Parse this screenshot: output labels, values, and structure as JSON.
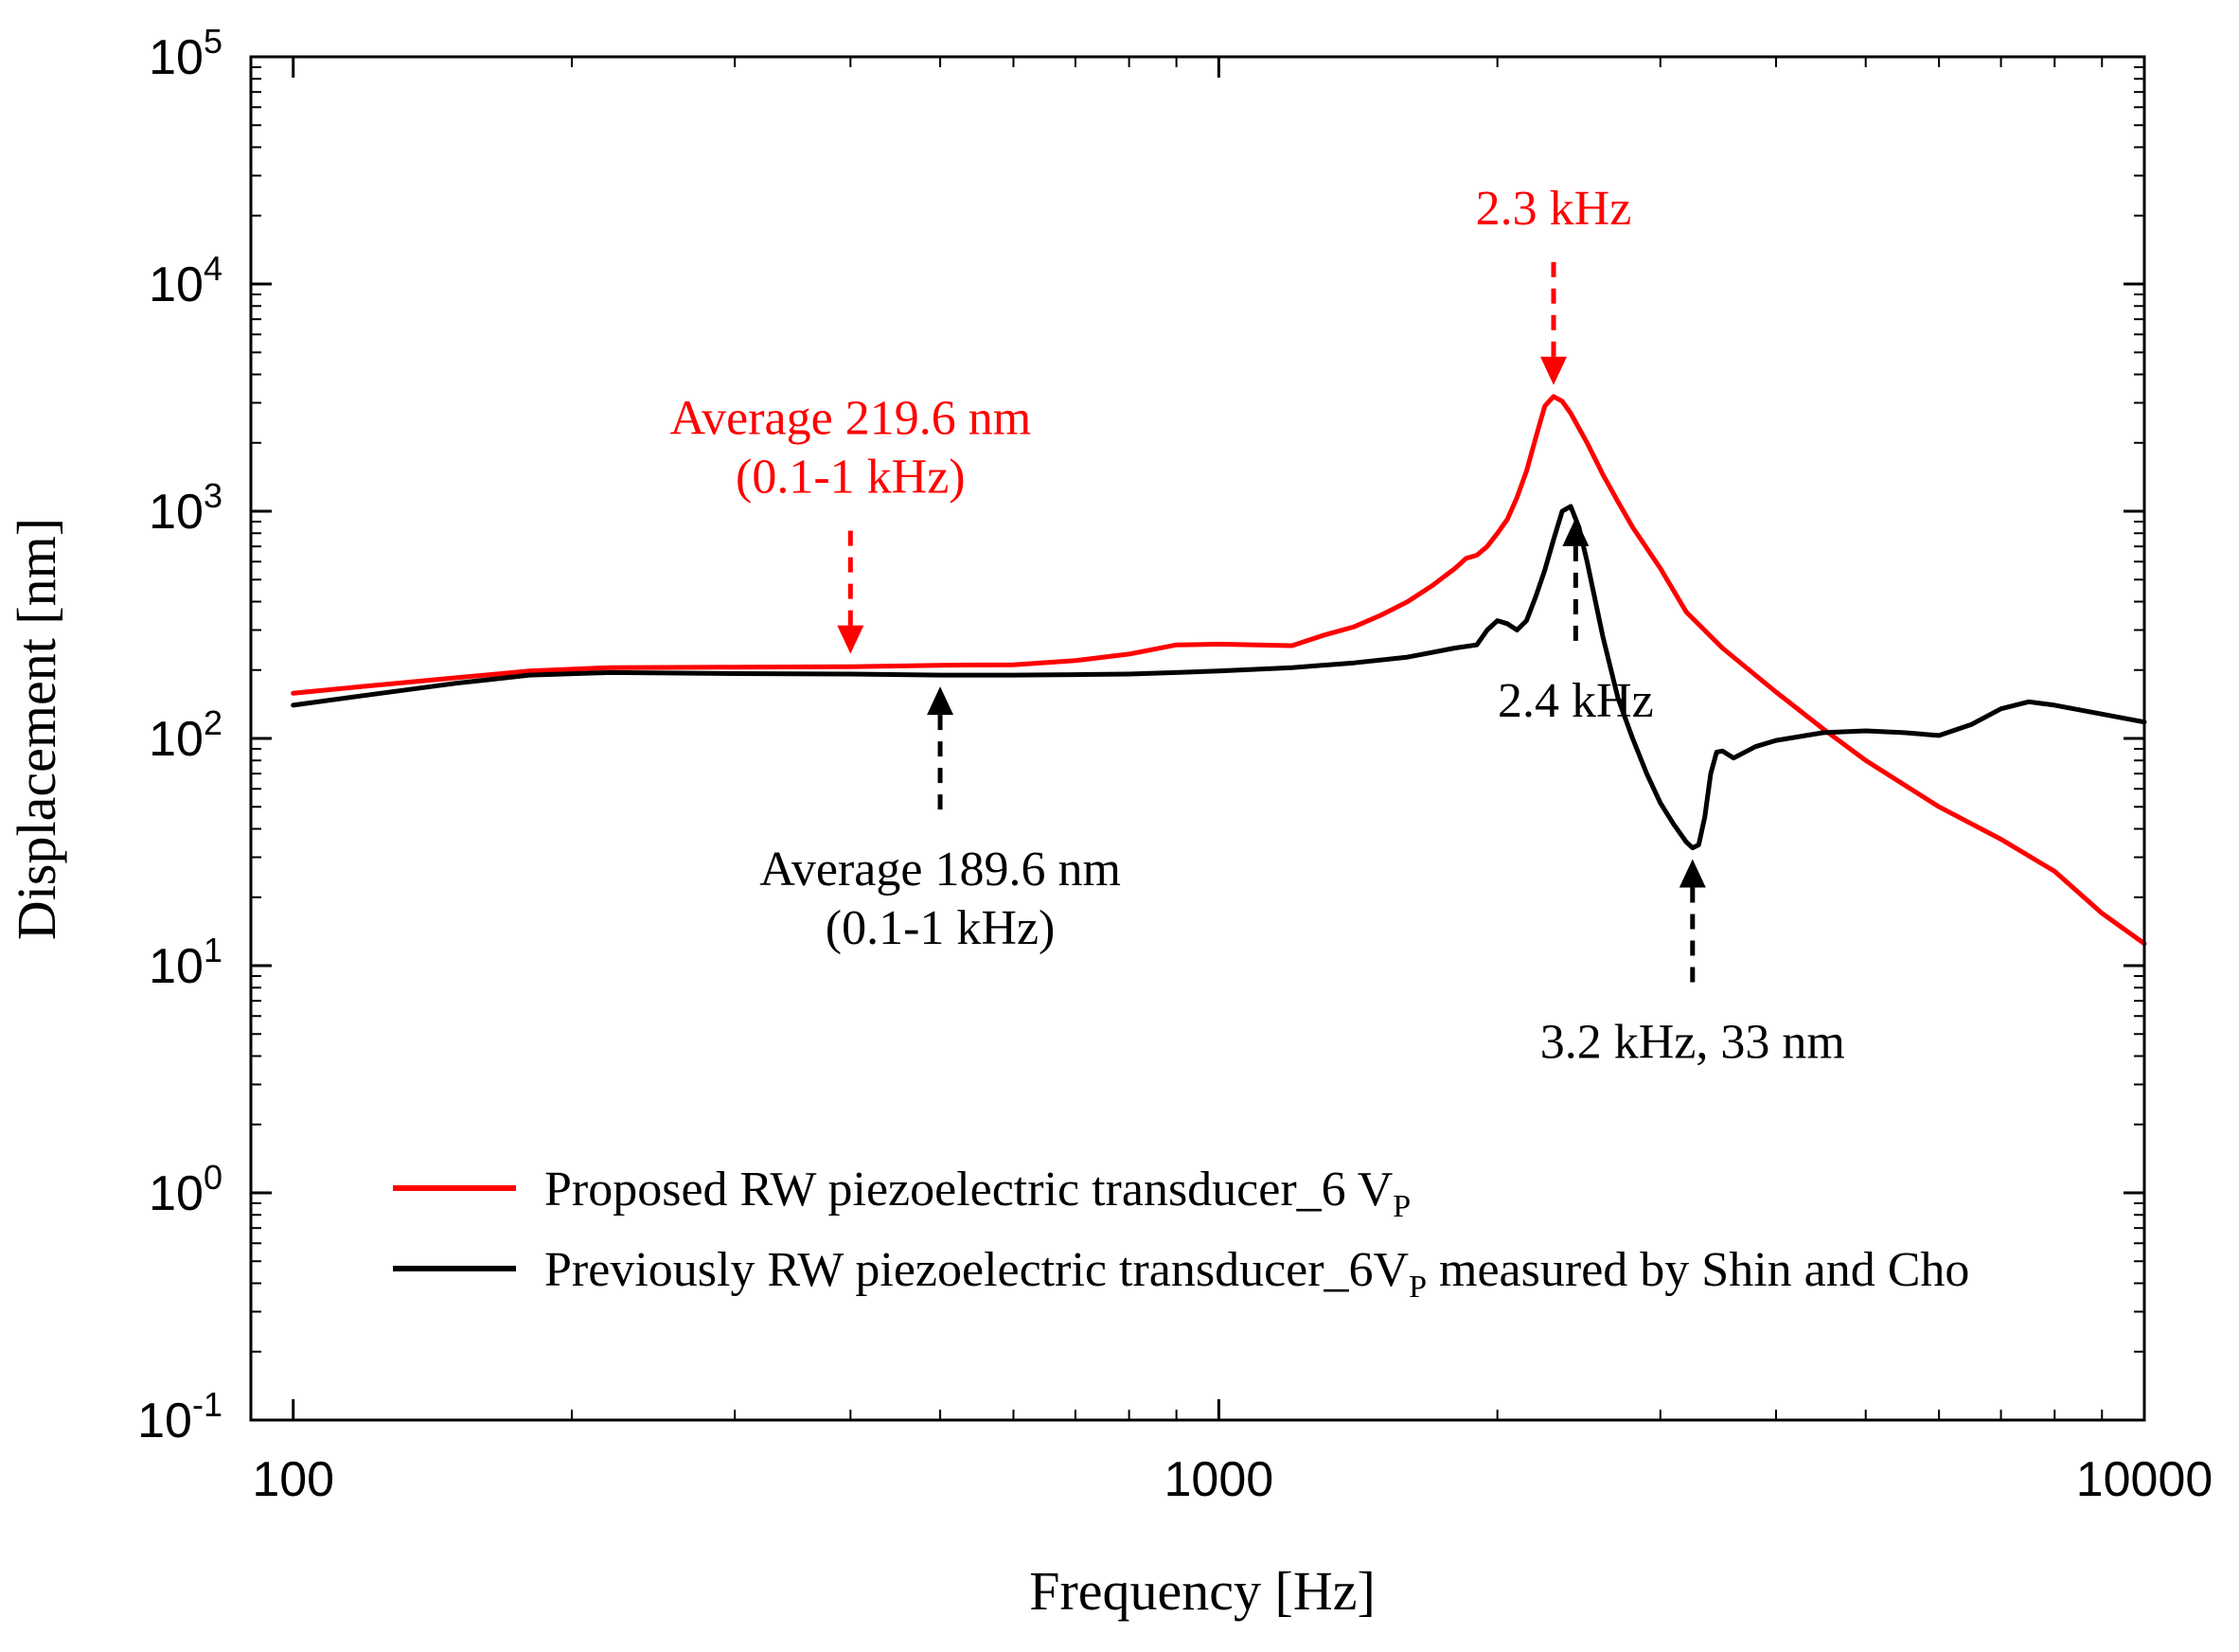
{
  "chart_data": {
    "type": "line",
    "xscale": "log",
    "yscale": "log",
    "xlim": [
      90,
      10000
    ],
    "ylim": [
      0.1,
      100000
    ],
    "xlabel": "Frequency [Hz]",
    "ylabel": "Displacement [nm]",
    "x_ticks": [
      {
        "value": 100,
        "label": "100"
      },
      {
        "value": 1000,
        "label": "1000"
      },
      {
        "value": 10000,
        "label": "10000"
      }
    ],
    "y_ticks": [
      {
        "value": 0.1,
        "base": "10",
        "exp": "-1"
      },
      {
        "value": 1,
        "base": "10",
        "exp": "0"
      },
      {
        "value": 10,
        "base": "10",
        "exp": "1"
      },
      {
        "value": 100,
        "base": "10",
        "exp": "2"
      },
      {
        "value": 1000,
        "base": "10",
        "exp": "3"
      },
      {
        "value": 10000,
        "base": "10",
        "exp": "4"
      },
      {
        "value": 100000,
        "base": "10",
        "exp": "5"
      }
    ],
    "series": [
      {
        "name": "Proposed RW piezoelectric transducer_6 V",
        "name_sub": "P",
        "color": "#ff0000",
        "points": [
          [
            100,
            158
          ],
          [
            120,
            170
          ],
          [
            150,
            185
          ],
          [
            180,
            198
          ],
          [
            220,
            205
          ],
          [
            300,
            206
          ],
          [
            400,
            207
          ],
          [
            500,
            210
          ],
          [
            600,
            211
          ],
          [
            700,
            220
          ],
          [
            800,
            235
          ],
          [
            900,
            258
          ],
          [
            1000,
            260
          ],
          [
            1100,
            258
          ],
          [
            1200,
            256
          ],
          [
            1300,
            285
          ],
          [
            1400,
            310
          ],
          [
            1500,
            350
          ],
          [
            1600,
            400
          ],
          [
            1700,
            470
          ],
          [
            1800,
            560
          ],
          [
            1850,
            620
          ],
          [
            1900,
            640
          ],
          [
            1950,
            700
          ],
          [
            2000,
            800
          ],
          [
            2050,
            920
          ],
          [
            2100,
            1150
          ],
          [
            2150,
            1500
          ],
          [
            2200,
            2100
          ],
          [
            2250,
            2900
          ],
          [
            2300,
            3200
          ],
          [
            2350,
            3050
          ],
          [
            2400,
            2700
          ],
          [
            2500,
            2000
          ],
          [
            2600,
            1450
          ],
          [
            2700,
            1100
          ],
          [
            2800,
            850
          ],
          [
            3000,
            560
          ],
          [
            3200,
            360
          ],
          [
            3500,
            250
          ],
          [
            4000,
            160
          ],
          [
            4500,
            110
          ],
          [
            5000,
            80
          ],
          [
            6000,
            50
          ],
          [
            7000,
            36
          ],
          [
            8000,
            26
          ],
          [
            9000,
            17
          ],
          [
            10000,
            12.5
          ]
        ]
      },
      {
        "name": "Previously RW piezoelectric transducer_6V",
        "name_sub": "P",
        "name_suffix": " measured by Shin and Cho",
        "color": "#000000",
        "points": [
          [
            100,
            140
          ],
          [
            120,
            155
          ],
          [
            150,
            175
          ],
          [
            180,
            190
          ],
          [
            220,
            195
          ],
          [
            300,
            193
          ],
          [
            400,
            192
          ],
          [
            500,
            190
          ],
          [
            600,
            190
          ],
          [
            700,
            191
          ],
          [
            800,
            192
          ],
          [
            900,
            195
          ],
          [
            1000,
            198
          ],
          [
            1200,
            205
          ],
          [
            1400,
            215
          ],
          [
            1600,
            228
          ],
          [
            1800,
            250
          ],
          [
            1900,
            258
          ],
          [
            1950,
            300
          ],
          [
            2000,
            330
          ],
          [
            2050,
            320
          ],
          [
            2100,
            300
          ],
          [
            2150,
            330
          ],
          [
            2200,
            420
          ],
          [
            2250,
            550
          ],
          [
            2300,
            750
          ],
          [
            2350,
            1000
          ],
          [
            2400,
            1050
          ],
          [
            2450,
            850
          ],
          [
            2500,
            600
          ],
          [
            2600,
            280
          ],
          [
            2700,
            150
          ],
          [
            2800,
            100
          ],
          [
            2900,
            70
          ],
          [
            3000,
            52
          ],
          [
            3100,
            42
          ],
          [
            3200,
            35
          ],
          [
            3250,
            33
          ],
          [
            3300,
            34
          ],
          [
            3350,
            45
          ],
          [
            3400,
            70
          ],
          [
            3450,
            87
          ],
          [
            3500,
            88
          ],
          [
            3600,
            82
          ],
          [
            3800,
            92
          ],
          [
            4000,
            98
          ],
          [
            4500,
            106
          ],
          [
            5000,
            108
          ],
          [
            5500,
            106
          ],
          [
            6000,
            103
          ],
          [
            6500,
            115
          ],
          [
            7000,
            135
          ],
          [
            7500,
            145
          ],
          [
            8000,
            140
          ],
          [
            9000,
            128
          ],
          [
            10000,
            118
          ]
        ]
      }
    ],
    "annotations": [
      {
        "text_lines": [
          "Average 219.6 nm",
          "(0.1-1 kHz)"
        ],
        "color": "#ff0000",
        "arrow_at": [
          400,
          210
        ],
        "arrow_from": "above"
      },
      {
        "text_lines": [
          "2.3 kHz"
        ],
        "color": "#ff0000",
        "arrow_at": [
          2300,
          3200
        ],
        "arrow_from": "above"
      },
      {
        "text_lines": [
          "Average 189.6 nm",
          "(0.1-1 kHz)"
        ],
        "color": "#000000",
        "arrow_at": [
          500,
          190
        ],
        "arrow_from": "below"
      },
      {
        "text_lines": [
          "2.4 kHz"
        ],
        "color": "#000000",
        "arrow_at": [
          2430,
          1050
        ],
        "arrow_from": "below"
      },
      {
        "text_lines": [
          "3.2 kHz, 33 nm"
        ],
        "color": "#000000",
        "arrow_at": [
          3250,
          33
        ],
        "arrow_from": "below"
      }
    ],
    "legend_position": "bottom-left"
  }
}
